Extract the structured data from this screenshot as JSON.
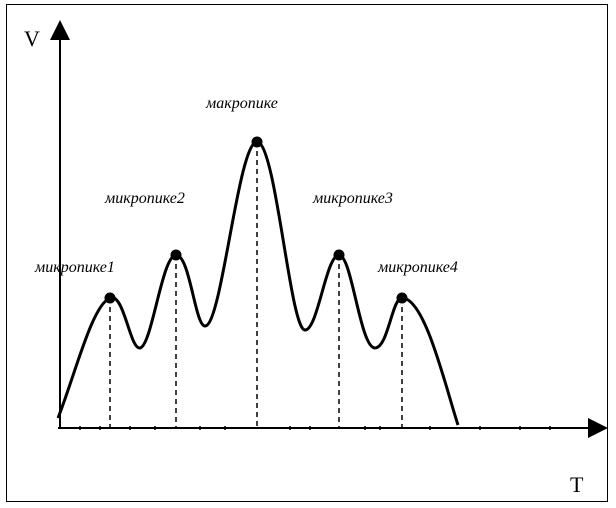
{
  "diagram": {
    "axes": {
      "y_label": "V",
      "x_label": "T"
    },
    "peaks": [
      {
        "label": "микропике1"
      },
      {
        "label": "микропике2"
      },
      {
        "label": "макропике"
      },
      {
        "label": "микропике3"
      },
      {
        "label": "микропике4"
      }
    ],
    "colors": {
      "line": "#000000",
      "background": "#ffffff"
    }
  }
}
